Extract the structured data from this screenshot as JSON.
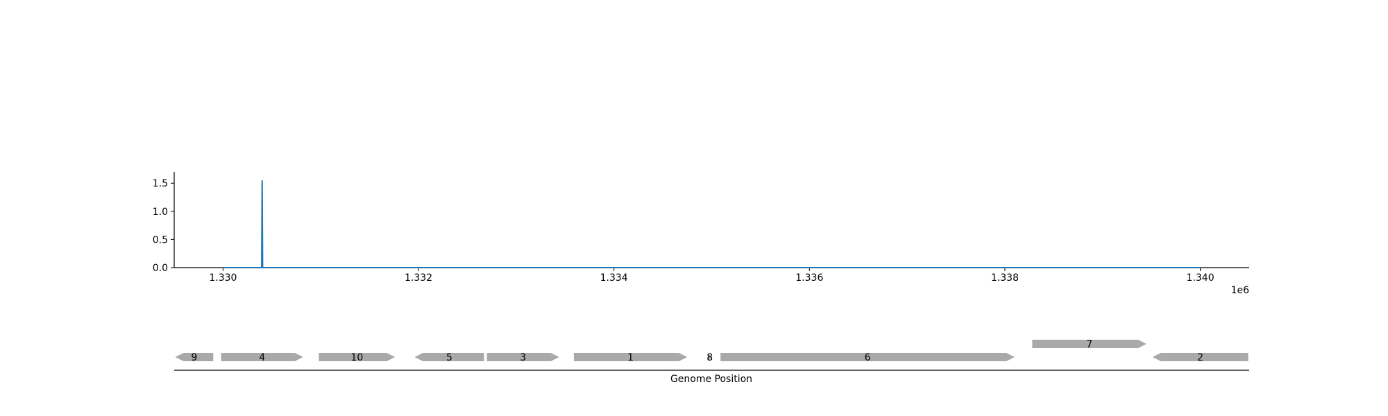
{
  "chart_data": [
    {
      "type": "line",
      "title": "",
      "xlabel": "",
      "ylabel": "",
      "x_offset_label": "1e6",
      "xlim": [
        1329500,
        1340500
      ],
      "ylim": [
        0,
        1.7
      ],
      "x_ticks": [
        1330000,
        1332000,
        1334000,
        1336000,
        1338000,
        1340000
      ],
      "x_tick_labels": [
        "1.330",
        "1.332",
        "1.334",
        "1.336",
        "1.338",
        "1.340"
      ],
      "y_ticks": [
        0,
        0.5,
        1.0,
        1.5
      ],
      "y_tick_labels": [
        "0.0",
        "0.5",
        "1.0",
        "1.5"
      ],
      "grid": false,
      "color": "#1f77b4",
      "series": [
        {
          "x": [
            1330000,
            1330395,
            1330400,
            1330405,
            1340000
          ],
          "y": [
            0,
            0,
            1.55,
            0,
            0
          ]
        }
      ]
    },
    {
      "type": "gene-track",
      "xlabel": "Genome Position",
      "xlim": [
        1329500,
        1340500
      ],
      "color": "#a9a9a9",
      "genes": [
        {
          "label": "9",
          "start": 1329510,
          "end": 1329900,
          "strand": -1,
          "lane": 0
        },
        {
          "label": "4",
          "start": 1329980,
          "end": 1330820,
          "strand": 1,
          "lane": 0
        },
        {
          "label": "10",
          "start": 1330980,
          "end": 1331760,
          "strand": 1,
          "lane": 0
        },
        {
          "label": "5",
          "start": 1331960,
          "end": 1332670,
          "strand": -1,
          "lane": 0
        },
        {
          "label": "3",
          "start": 1332700,
          "end": 1333440,
          "strand": 1,
          "lane": 0
        },
        {
          "label": "1",
          "start": 1333590,
          "end": 1334750,
          "strand": 1,
          "lane": 0
        },
        {
          "label": "8",
          "start": 1334960,
          "end": 1335000,
          "strand": 1,
          "lane": 0
        },
        {
          "label": "6",
          "start": 1335090,
          "end": 1338100,
          "strand": 1,
          "lane": 0
        },
        {
          "label": "7",
          "start": 1338280,
          "end": 1339450,
          "strand": 1,
          "lane": 1
        },
        {
          "label": "2",
          "start": 1339510,
          "end": 1340490,
          "strand": -1,
          "lane": 0
        }
      ]
    }
  ]
}
